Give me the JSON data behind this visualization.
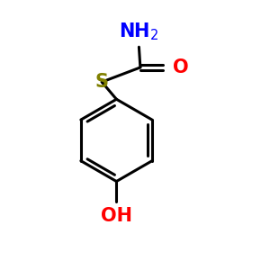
{
  "background_color": "#ffffff",
  "atom_colors": {
    "N": "#0000ff",
    "O": "#ff0000",
    "S": "#808000",
    "C": "#000000",
    "bond": "#000000"
  },
  "bond_width": 2.2,
  "font_size_atoms": 15
}
